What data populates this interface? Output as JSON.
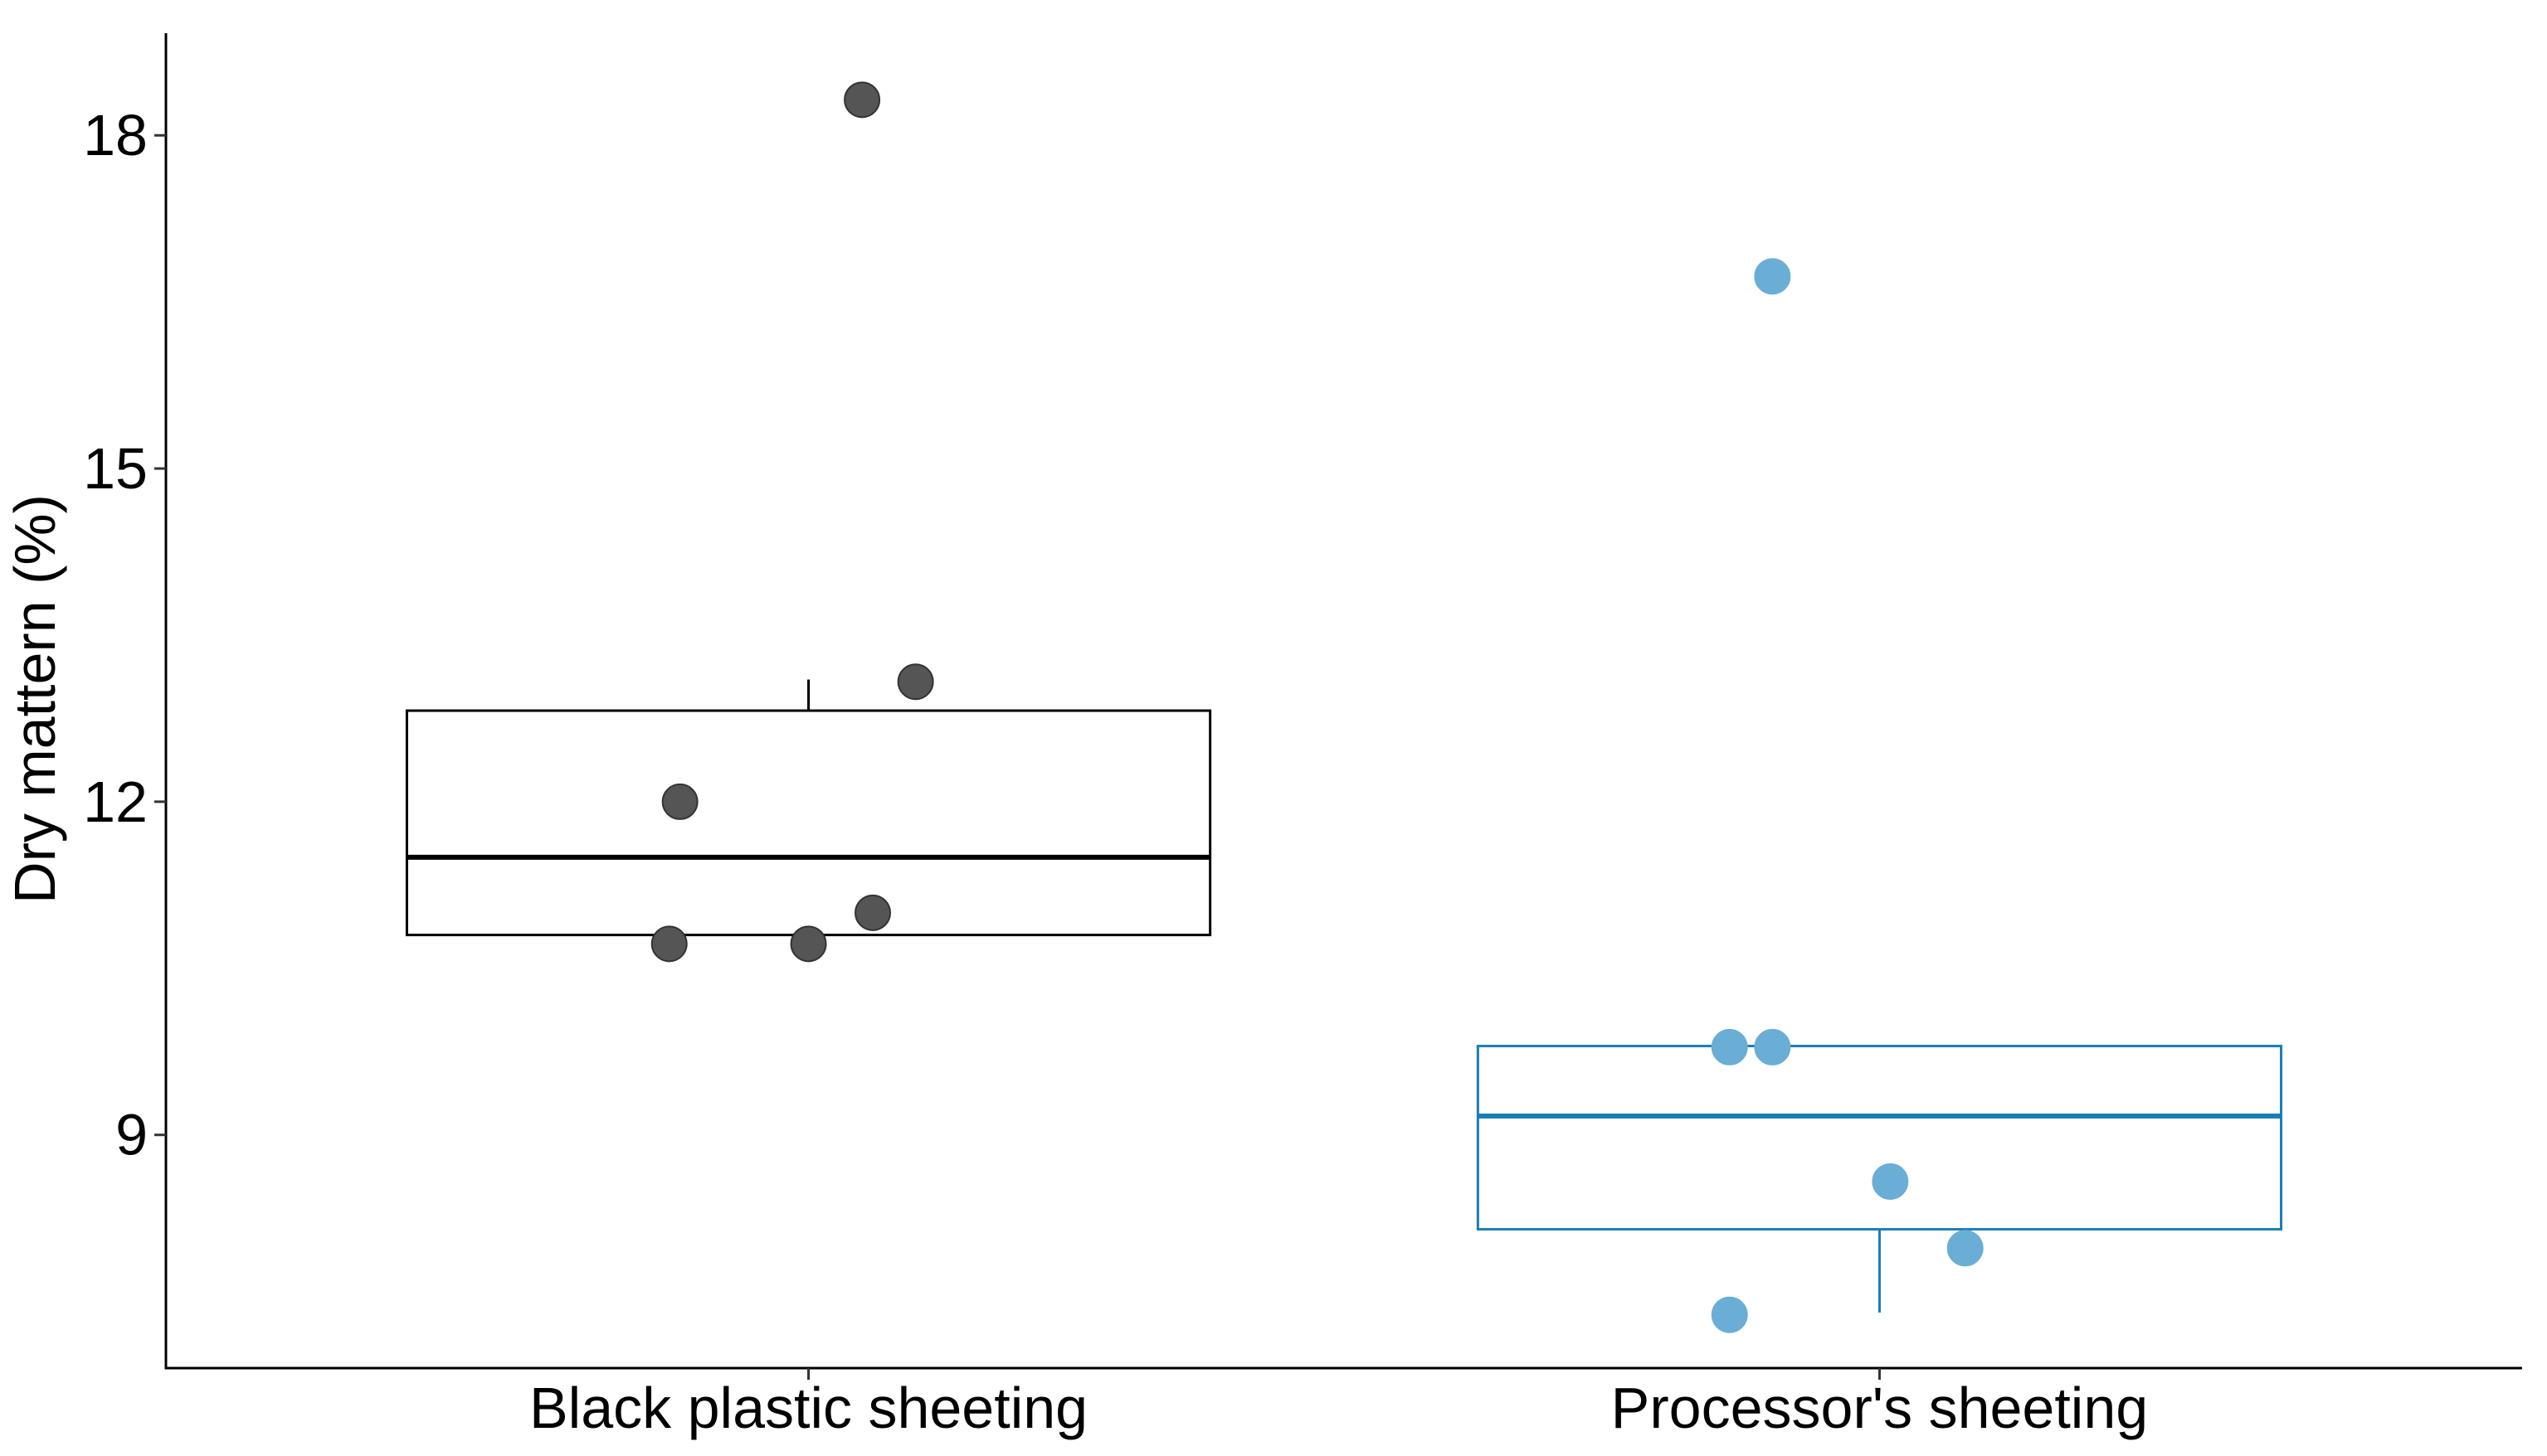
{
  "chart_data": {
    "type": "boxplot",
    "title": "",
    "xlabel": "",
    "ylabel": "Dry mattern (%)",
    "ylim": [
      6.9,
      18.92
    ],
    "yticks": [
      9,
      12,
      15,
      18
    ],
    "categories": [
      "Black plastic sheeting",
      "Processor's sheeting"
    ],
    "boxes": [
      {
        "category": "Black plastic sheeting",
        "q1": 10.8,
        "median": 11.5,
        "q3": 12.82,
        "whisker_low": 10.8,
        "whisker_high": 13.1,
        "color": "#000000"
      },
      {
        "category": "Processor's sheeting",
        "q1": 8.15,
        "median": 9.17,
        "q3": 9.8,
        "whisker_low": 7.4,
        "whisker_high": 9.8,
        "color": "#1b7db6"
      }
    ],
    "points": [
      [
        {
          "jitter": 0.05,
          "y": 18.32
        },
        {
          "jitter": 0.1,
          "y": 13.08
        },
        {
          "jitter": -0.12,
          "y": 12.0
        },
        {
          "jitter": 0.06,
          "y": 11.0
        },
        {
          "jitter": -0.13,
          "y": 10.72
        },
        {
          "jitter": 0.0,
          "y": 10.72
        }
      ],
      [
        {
          "jitter": -0.1,
          "y": 16.73
        },
        {
          "jitter": -0.14,
          "y": 9.79
        },
        {
          "jitter": -0.1,
          "y": 9.79
        },
        {
          "jitter": 0.01,
          "y": 8.58
        },
        {
          "jitter": 0.08,
          "y": 7.98
        },
        {
          "jitter": -0.14,
          "y": 7.38
        }
      ]
    ],
    "point_colors": [
      "#555555",
      "#6aaed6"
    ],
    "point_outline": [
      "#333333",
      "#6aaed6"
    ],
    "grid": false,
    "legend": "none"
  }
}
